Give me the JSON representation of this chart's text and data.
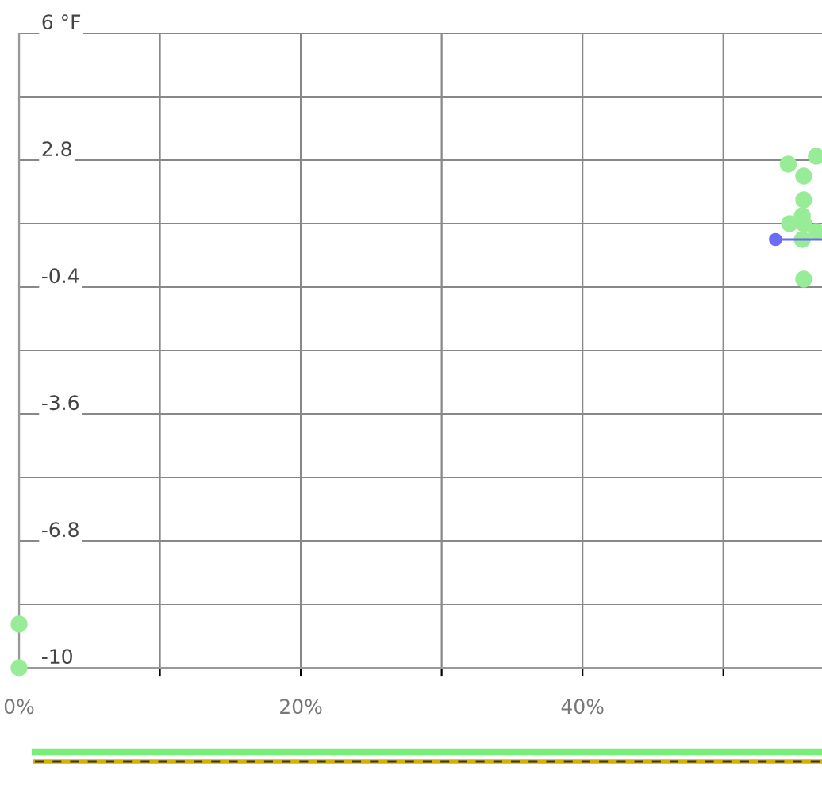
{
  "chart_data": {
    "type": "scatter",
    "grid": true,
    "marker": "circle",
    "xlim": [
      0,
      57
    ],
    "ylim": [
      -10,
      6
    ],
    "xticks": [
      {
        "value": 0,
        "label": "0%"
      },
      {
        "value": 10,
        "label": null
      },
      {
        "value": 20,
        "label": "20%"
      },
      {
        "value": 30,
        "label": null
      },
      {
        "value": 40,
        "label": "40%"
      },
      {
        "value": 50,
        "label": null
      }
    ],
    "yticks": [
      -10,
      {
        "value": -8.4,
        "label": null
      },
      -6.8,
      {
        "value": -5.2,
        "label": null
      },
      -3.6,
      {
        "value": -2,
        "label": null
      },
      -0.4,
      {
        "value": 1.2,
        "label": null
      },
      2.8,
      {
        "value": 4.4,
        "label": null
      },
      {
        "value": 6,
        "label": "6 °F"
      }
    ],
    "series": [
      {
        "color": "#98ec98",
        "x": [
          0,
          0,
          54.6,
          56.6,
          55.7,
          55.7,
          55.6,
          54.7,
          55.7,
          56.6,
          55.6,
          55.7
        ],
        "values": [
          -8.9,
          -10,
          2.7,
          2.9,
          2.4,
          1.8,
          1.4,
          1.2,
          1.2,
          1.0,
          0.8,
          -0.2
        ]
      },
      {
        "type": "line",
        "color": "#6b6bf5",
        "x": [
          53.7,
          57
        ],
        "values": [
          0.8,
          0.8
        ]
      }
    ]
  }
}
